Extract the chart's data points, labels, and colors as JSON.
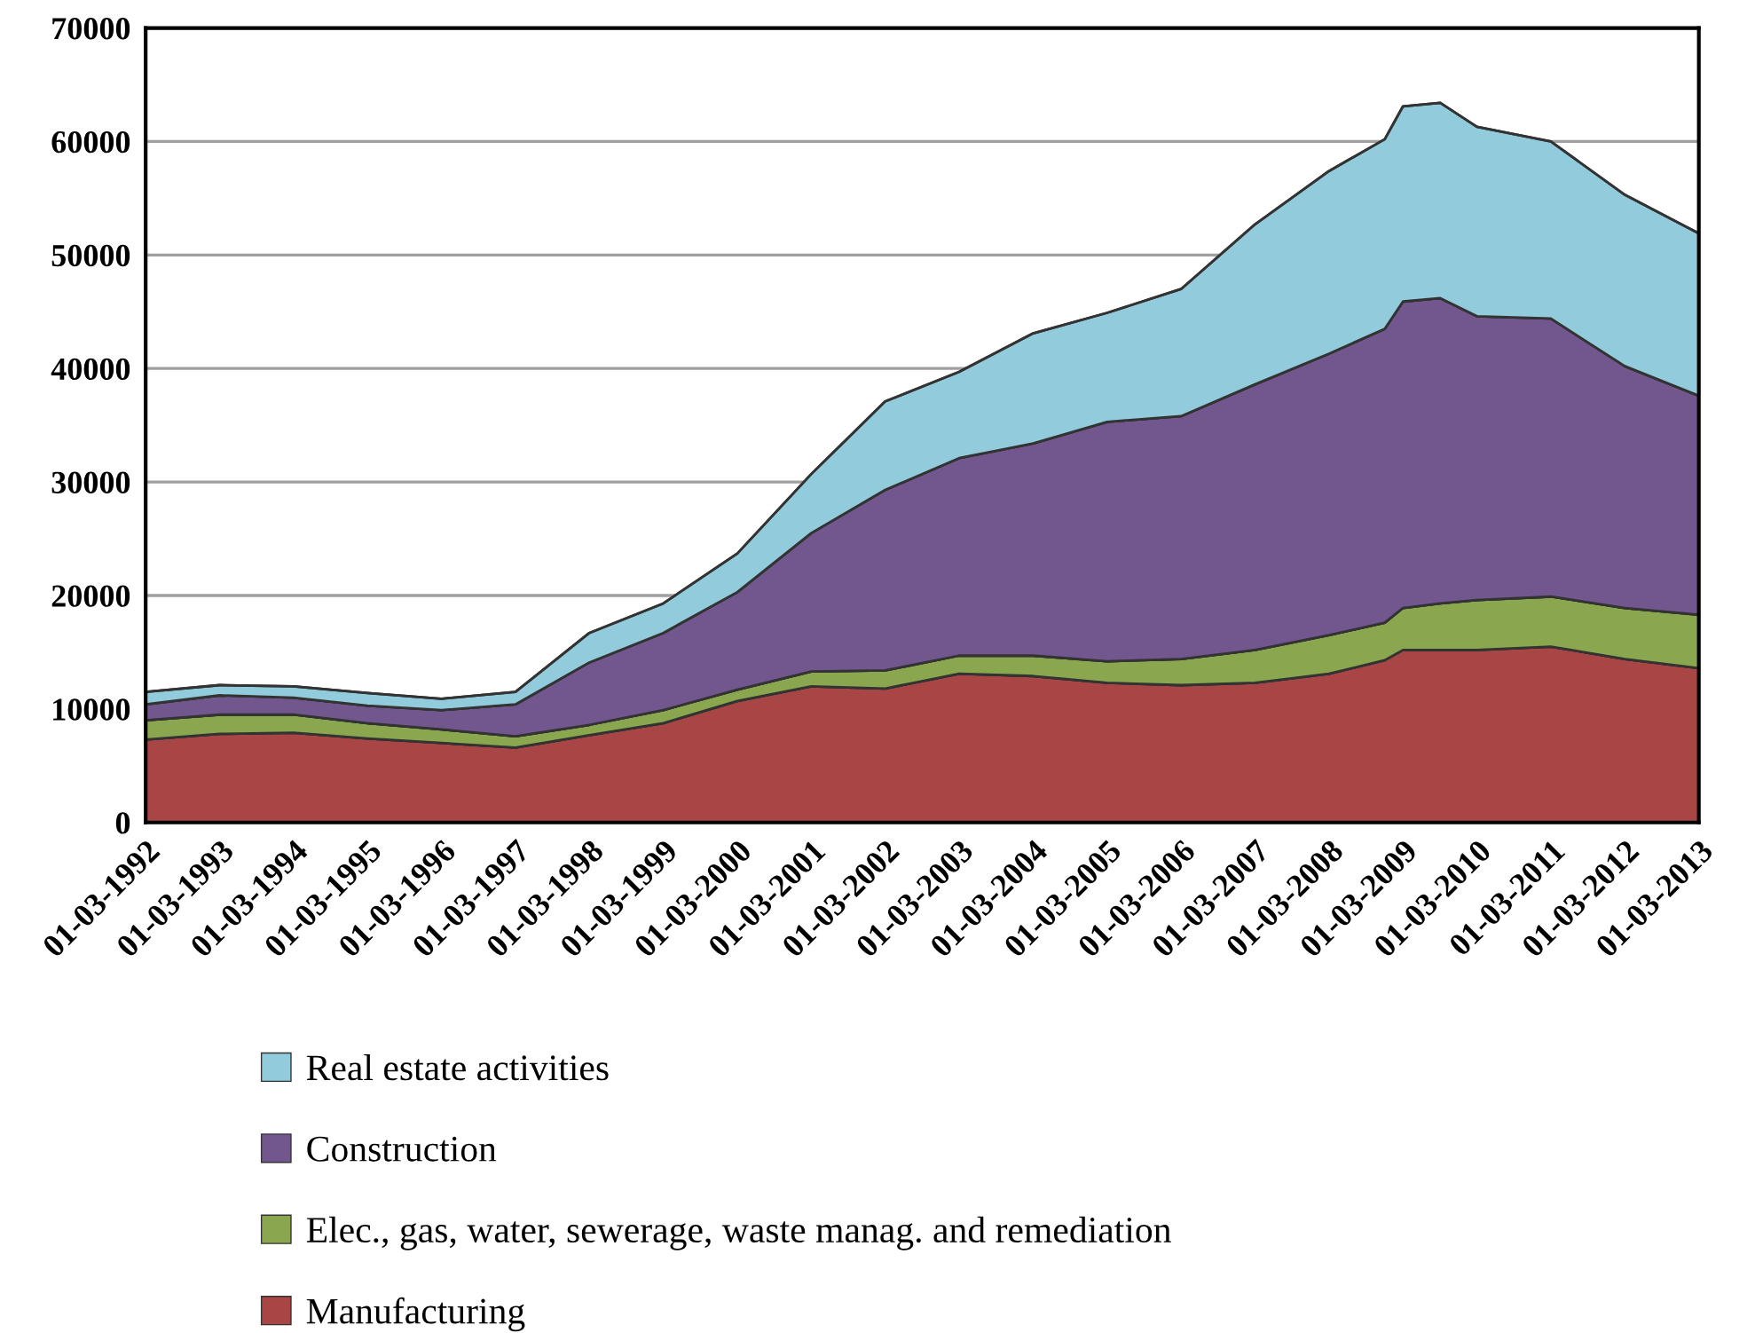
{
  "chart_data": {
    "type": "area",
    "stacked": true,
    "x": [
      "1992-03",
      "1993-03",
      "1994-03",
      "1995-03",
      "1996-03",
      "1997-03",
      "1998-03",
      "1999-03",
      "2000-03",
      "2001-03",
      "2002-03",
      "2003-03",
      "2004-03",
      "2005-03",
      "2006-03",
      "2007-03",
      "2008-03",
      "2008-12",
      "2009-03",
      "2009-09",
      "2010-03",
      "2011-03",
      "2012-03",
      "2013-03"
    ],
    "series": [
      {
        "name": "Manufacturing",
        "color": "#a84545",
        "values": [
          7300,
          7800,
          7900,
          7400,
          7000,
          6600,
          7700,
          8750,
          10700,
          12000,
          11800,
          13100,
          12900,
          12300,
          12100,
          12300,
          13100,
          14300,
          15200,
          15200,
          15200,
          15500,
          14400,
          13600
        ]
      },
      {
        "name": "Elec., gas, water, sewerage, waste manag. and remediation",
        "color": "#8aa64e",
        "values": [
          1700,
          1700,
          1600,
          1350,
          1200,
          1000,
          900,
          1150,
          1000,
          1300,
          1600,
          1600,
          1800,
          1900,
          2300,
          2900,
          3400,
          3300,
          3700,
          4100,
          4400,
          4400,
          4500,
          4700
        ]
      },
      {
        "name": "Construction",
        "color": "#71578e",
        "values": [
          1400,
          1700,
          1500,
          1550,
          1700,
          2800,
          5500,
          6800,
          8600,
          12200,
          15900,
          17400,
          18700,
          21100,
          21400,
          23400,
          24800,
          25900,
          27000,
          26900,
          25000,
          24500,
          21300,
          19300
        ]
      },
      {
        "name": "Real estate activities",
        "color": "#92cbdb",
        "values": [
          1100,
          900,
          1000,
          1100,
          1000,
          1100,
          2600,
          2600,
          3400,
          5200,
          7800,
          7600,
          9700,
          9600,
          11200,
          14100,
          16100,
          16700,
          17200,
          17200,
          16700,
          15600,
          15100,
          14300
        ]
      }
    ],
    "xlim": [
      "1992-03",
      "2013-03"
    ],
    "xticks": [
      {
        "value": "1992-03",
        "label": "01-03-1992"
      },
      {
        "value": "1993-03",
        "label": "01-03-1993"
      },
      {
        "value": "1994-03",
        "label": "01-03-1994"
      },
      {
        "value": "1995-03",
        "label": "01-03-1995"
      },
      {
        "value": "1996-03",
        "label": "01-03-1996"
      },
      {
        "value": "1997-03",
        "label": "01-03-1997"
      },
      {
        "value": "1998-03",
        "label": "01-03-1998"
      },
      {
        "value": "1999-03",
        "label": "01-03-1999"
      },
      {
        "value": "2000-03",
        "label": "01-03-2000"
      },
      {
        "value": "2001-03",
        "label": "01-03-2001"
      },
      {
        "value": "2002-03",
        "label": "01-03-2002"
      },
      {
        "value": "2003-03",
        "label": "01-03-2003"
      },
      {
        "value": "2004-03",
        "label": "01-03-2004"
      },
      {
        "value": "2005-03",
        "label": "01-03-2005"
      },
      {
        "value": "2006-03",
        "label": "01-03-2006"
      },
      {
        "value": "2007-03",
        "label": "01-03-2007"
      },
      {
        "value": "2008-03",
        "label": "01-03-2008"
      },
      {
        "value": "2009-03",
        "label": "01-03-2009"
      },
      {
        "value": "2010-03",
        "label": "01-03-2010"
      },
      {
        "value": "2011-03",
        "label": "01-03-2011"
      },
      {
        "value": "2012-03",
        "label": "01-03-2012"
      },
      {
        "value": "2013-03",
        "label": "01-03-2013"
      }
    ],
    "ylim": [
      0,
      70000
    ],
    "yticks": [
      0,
      10000,
      20000,
      30000,
      40000,
      50000,
      60000,
      70000
    ],
    "grid": "y",
    "legend": "bottom"
  }
}
